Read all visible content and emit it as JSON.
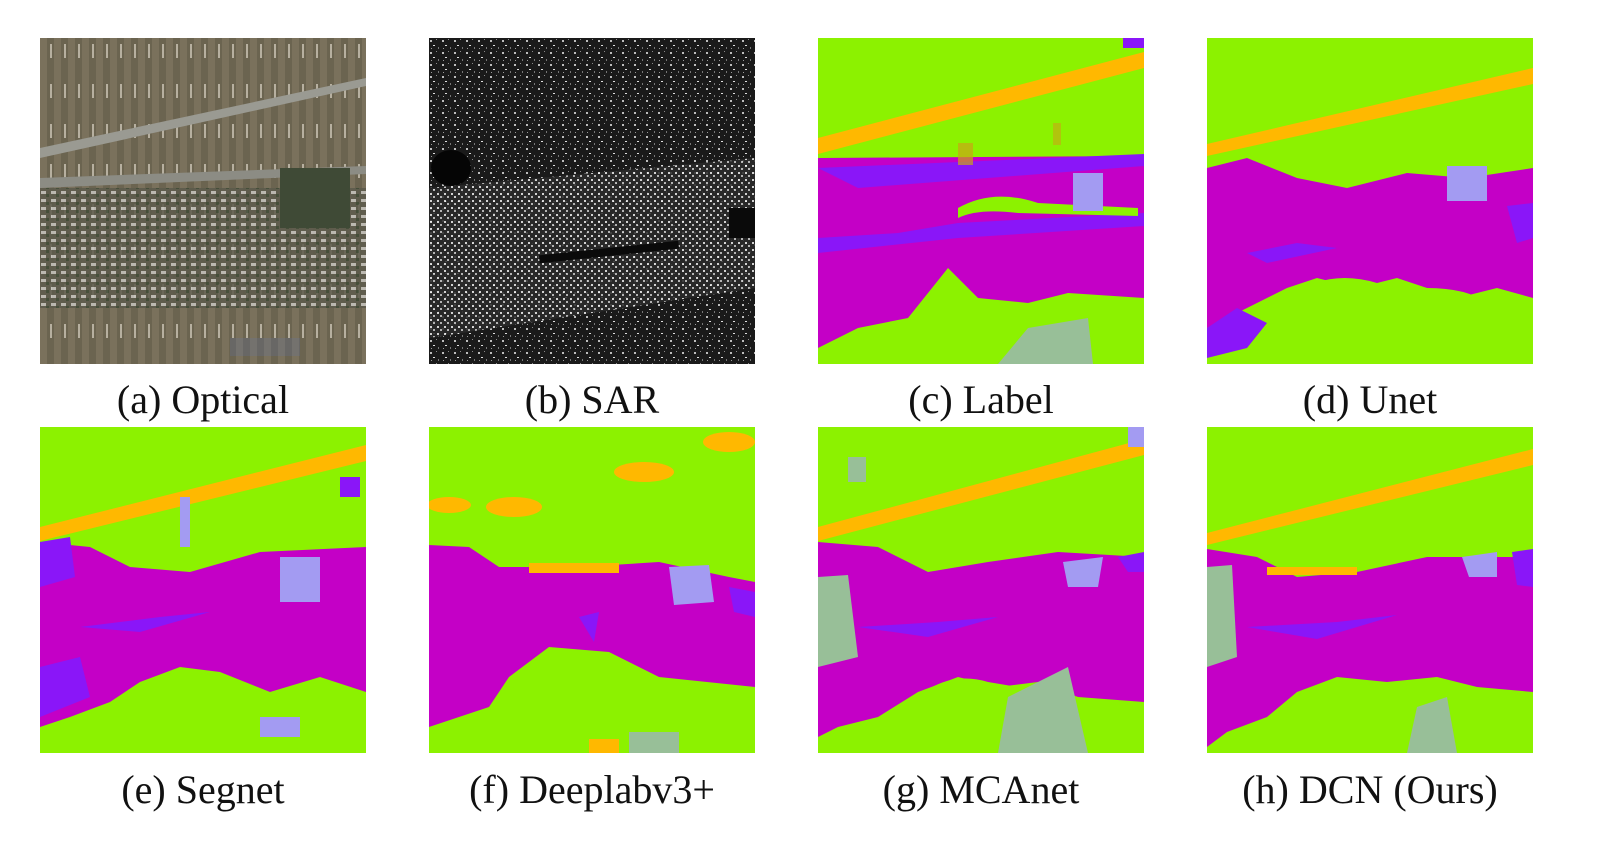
{
  "figure": {
    "panels": [
      {
        "id": "a",
        "caption": "(a) Optical"
      },
      {
        "id": "b",
        "caption": "(b) SAR"
      },
      {
        "id": "c",
        "caption": "(c) Label"
      },
      {
        "id": "d",
        "caption": "(d) Unet"
      },
      {
        "id": "e",
        "caption": "(e) Segnet"
      },
      {
        "id": "f",
        "caption": "(f) Deeplabv3+"
      },
      {
        "id": "g",
        "caption": "(g) MCAnet"
      },
      {
        "id": "h",
        "caption": "(h) DCN (Ours)"
      }
    ],
    "class_colors": {
      "background_green": "#8cf200",
      "road_orange": "#ffb800",
      "built_magenta": "#c400c6",
      "water_violet": "#8a16f8",
      "lavender": "#a39bf2",
      "sage": "#98bf98"
    }
  }
}
